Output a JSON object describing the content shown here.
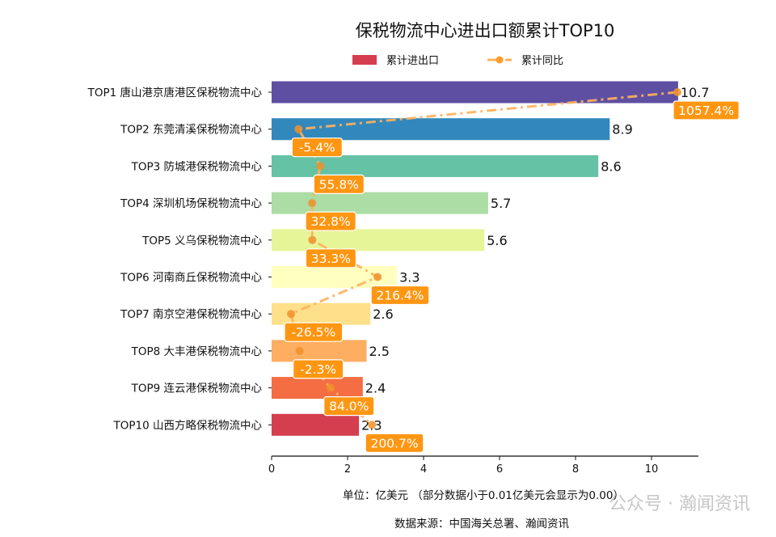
{
  "chart_data": {
    "type": "bar",
    "orientation": "horizontal",
    "title": "保税物流中心进出口额累计TOP10",
    "categories": [
      "TOP1 唐山港京唐港区保税物流中心",
      "TOP2 东莞清溪保税物流中心",
      "TOP3 防城港保税物流中心",
      "TOP4 深圳机场保税物流中心",
      "TOP5 义乌保税物流中心",
      "TOP6 河南商丘保税物流中心",
      "TOP7 南京空港保税物流中心",
      "TOP8 大丰港保税物流中心",
      "TOP9 连云港保税物流中心",
      "TOP10 山西方略保税物流中心"
    ],
    "series": [
      {
        "name": "累计进出口",
        "type": "bar",
        "values": [
          10.7,
          8.9,
          8.6,
          5.7,
          5.6,
          3.3,
          2.6,
          2.5,
          2.4,
          2.3
        ],
        "labels": [
          "10.7",
          "8.9",
          "8.6",
          "5.7",
          "5.6",
          "3.3",
          "2.6",
          "2.5",
          "2.4",
          "2.3"
        ],
        "colors": [
          "#5e4fa2",
          "#3288bd",
          "#66c2a5",
          "#abdda4",
          "#e6f598",
          "#ffffbf",
          "#fee08b",
          "#fdae61",
          "#f46d43",
          "#d53e4f"
        ]
      },
      {
        "name": "累计同比",
        "type": "line",
        "unit": "%",
        "values": [
          1057.4,
          -5.4,
          55.8,
          32.8,
          33.3,
          216.4,
          -26.5,
          -2.3,
          84.0,
          200.7
        ],
        "labels": [
          "1057.4%",
          "-5.4%",
          "55.8%",
          "32.8%",
          "33.3%",
          "216.4%",
          "-26.5%",
          "-2.3%",
          "84.0%",
          "200.7%"
        ],
        "color": "#ffb15c",
        "label_color": "#ff9612"
      }
    ],
    "xlim": [
      0,
      11.2
    ],
    "xticks": [
      "0",
      "2",
      "4",
      "6",
      "8",
      "10"
    ],
    "xlabel": "单位：亿美元  （部分数据小于0.01亿美元会显示为0.00）",
    "legend_position": "top-center",
    "grid": false
  },
  "source": "数据来源：中国海关总署、瀚闻资讯",
  "watermark": "公众号 · 瀚闻资讯"
}
